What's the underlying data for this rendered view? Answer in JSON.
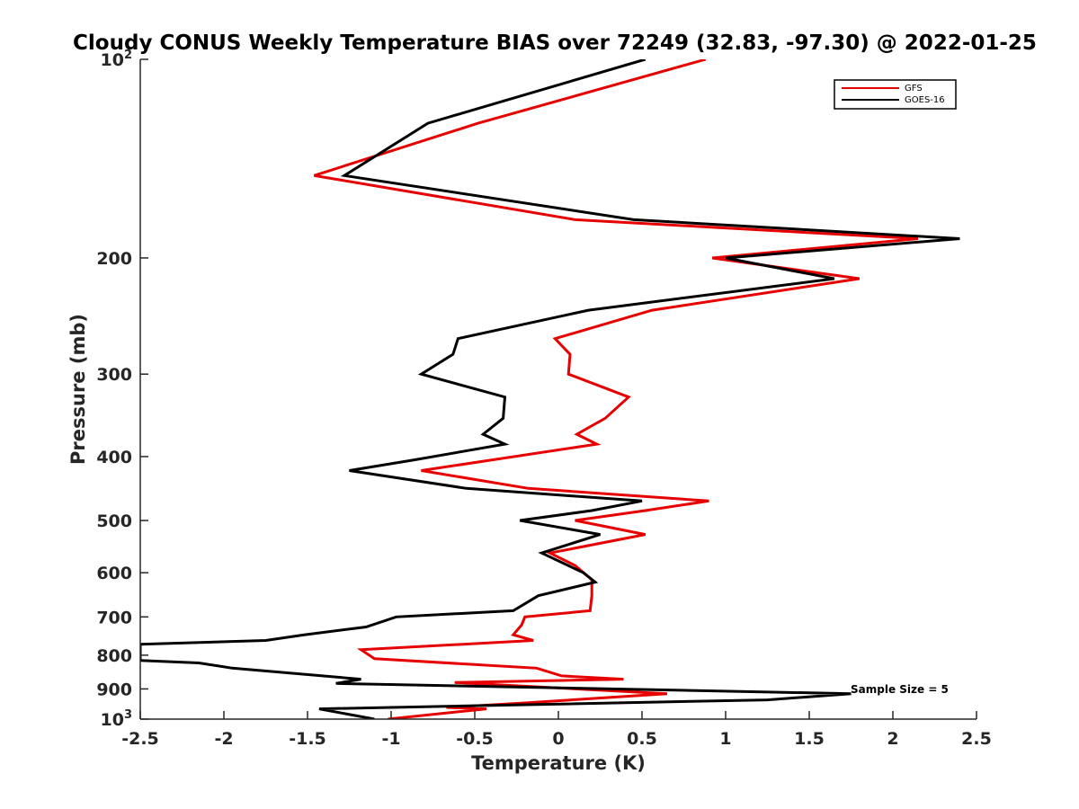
{
  "chart_data": {
    "type": "line",
    "title": "Cloudy CONUS Weekly Temperature BIAS over 72249 (32.83, -97.30) @ 2022-01-25",
    "xlabel": "Temperature (K)",
    "ylabel": "Pressure (mb)",
    "xlim": [
      -2.5,
      2.5
    ],
    "ylim": [
      100,
      1000
    ],
    "y_scale": "log",
    "y_reversed": true,
    "grid": false,
    "legend_position": "top-right",
    "x_ticks": [
      "-2.5",
      "-2",
      "-1.5",
      "-1",
      "-0.5",
      "0",
      "0.5",
      "1",
      "1.5",
      "2",
      "2.5"
    ],
    "y_ticks": [
      {
        "value": 100,
        "base": "10",
        "exp": "2"
      },
      {
        "value": 200,
        "label": "200"
      },
      {
        "value": 300,
        "label": "300"
      },
      {
        "value": 400,
        "label": "400"
      },
      {
        "value": 500,
        "label": "500"
      },
      {
        "value": 600,
        "label": "600"
      },
      {
        "value": 700,
        "label": "700"
      },
      {
        "value": 800,
        "label": "800"
      },
      {
        "value": 900,
        "label": "900"
      },
      {
        "value": 1000,
        "base": "10",
        "exp": "3"
      }
    ],
    "annotation": "Sample Size = 5",
    "series": [
      {
        "name": "GFS",
        "color": "#e60000",
        "points": [
          [
            0.88,
            100
          ],
          [
            -0.48,
            125
          ],
          [
            -1.46,
            150
          ],
          [
            0.1,
            175
          ],
          [
            2.15,
            187
          ],
          [
            0.92,
            200
          ],
          [
            1.8,
            215
          ],
          [
            0.56,
            240
          ],
          [
            -0.02,
            265
          ],
          [
            0.07,
            280
          ],
          [
            0.06,
            300
          ],
          [
            0.42,
            325
          ],
          [
            0.28,
            350
          ],
          [
            0.11,
            370
          ],
          [
            0.23,
            383
          ],
          [
            -0.82,
            420
          ],
          [
            -0.18,
            447
          ],
          [
            0.9,
            467
          ],
          [
            0.52,
            483
          ],
          [
            0.1,
            500
          ],
          [
            0.52,
            525
          ],
          [
            -0.05,
            560
          ],
          [
            0.1,
            585
          ],
          [
            0.2,
            615
          ],
          [
            0.2,
            650
          ],
          [
            0.19,
            685
          ],
          [
            -0.2,
            700
          ],
          [
            -0.22,
            720
          ],
          [
            -0.27,
            745
          ],
          [
            -0.15,
            760
          ],
          [
            -1.18,
            785
          ],
          [
            -1.1,
            810
          ],
          [
            -0.13,
            837
          ],
          [
            0.02,
            860
          ],
          [
            0.39,
            870
          ],
          [
            -0.62,
            880
          ],
          [
            0.65,
            915
          ],
          [
            -0.2,
            945
          ],
          [
            -0.67,
            960
          ],
          [
            -0.43,
            965
          ],
          [
            -1.02,
            1000
          ]
        ]
      },
      {
        "name": "GOES-16",
        "color": "#000000",
        "points": [
          [
            0.52,
            100
          ],
          [
            -0.78,
            125
          ],
          [
            -1.28,
            150
          ],
          [
            0.45,
            175
          ],
          [
            2.4,
            187
          ],
          [
            1.0,
            200
          ],
          [
            1.65,
            215
          ],
          [
            0.18,
            240
          ],
          [
            -0.6,
            265
          ],
          [
            -0.63,
            280
          ],
          [
            -0.82,
            300
          ],
          [
            -0.32,
            325
          ],
          [
            -0.33,
            350
          ],
          [
            -0.45,
            370
          ],
          [
            -0.32,
            383
          ],
          [
            -0.87,
            405
          ],
          [
            -1.25,
            420
          ],
          [
            -0.55,
            447
          ],
          [
            0.5,
            467
          ],
          [
            0.2,
            483
          ],
          [
            -0.23,
            500
          ],
          [
            0.25,
            525
          ],
          [
            -0.1,
            560
          ],
          [
            0.15,
            600
          ],
          [
            0.22,
            620
          ],
          [
            -0.12,
            650
          ],
          [
            -0.27,
            685
          ],
          [
            -0.97,
            700
          ],
          [
            -1.15,
            725
          ],
          [
            -1.52,
            745
          ],
          [
            -1.75,
            760
          ],
          [
            -2.5,
            770
          ],
          [
            -2.5,
            815
          ],
          [
            -2.15,
            822
          ],
          [
            -1.95,
            837
          ],
          [
            -1.18,
            870
          ],
          [
            -1.33,
            883
          ],
          [
            1.75,
            915
          ],
          [
            1.25,
            935
          ],
          [
            -1.43,
            965
          ],
          [
            -1.1,
            1000
          ]
        ]
      }
    ]
  }
}
